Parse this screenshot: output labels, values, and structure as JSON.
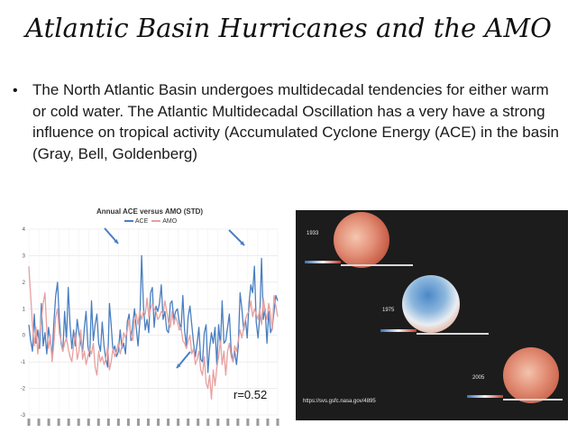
{
  "slide": {
    "title": "Atlantic Basin Hurricanes and the AMO",
    "bullet": "The North Atlantic Basin undergoes multidecadal tendencies for either warm or cold water. The Atlantic Multidecadal Oscillation has a very have a strong influence on tropical activity (Accumulated Cyclone Energy (ACE) in the basin (Gray, Bell, Goldenberg)"
  },
  "colors": {
    "ace": "#4a7fc1",
    "amo": "#e8a0a0",
    "panel_bg": "#1c1c1c"
  },
  "chart_data": {
    "type": "line",
    "title": "Annual ACE versus AMO (STD)",
    "legend": [
      "ACE",
      "AMO"
    ],
    "legend_position": "top-center",
    "annotation": "r=0.52",
    "ylim": [
      -3,
      4
    ],
    "yticks": [
      "4",
      "3",
      "2",
      "1",
      "0",
      "-1",
      "-2",
      "-3"
    ],
    "grid": true,
    "x_start": 1871,
    "x_end": 2010,
    "series": [
      {
        "name": "ACE",
        "values": [
          0.4,
          -0.2,
          -0.6,
          0.8,
          -0.3,
          0.2,
          -0.5,
          1.2,
          -0.4,
          0.1,
          -0.7,
          0.3,
          -0.2,
          -0.8,
          0.5,
          1.5,
          2.0,
          0.6,
          -0.3,
          -0.6,
          0.9,
          -0.2,
          1.8,
          0.4,
          -0.5,
          0.2,
          -0.4,
          0.6,
          0.1,
          -0.3,
          -0.6,
          0.3,
          0.9,
          -0.4,
          -0.8,
          1.3,
          -0.2,
          0.4,
          0.8,
          -0.3,
          -0.6,
          0.5,
          -0.4,
          -0.9,
          -1.2,
          1.2,
          0.4,
          -0.6,
          -0.4,
          -0.8,
          -0.6,
          0.2,
          -0.5,
          -0.3,
          -0.7,
          0.5,
          0.8,
          -0.2,
          0.4,
          1.0,
          0.3,
          -0.4,
          0.5,
          3.0,
          1.1,
          0.2,
          0.6,
          0.1,
          1.6,
          1.8,
          0.3,
          1.1,
          0.9,
          1.2,
          1.9,
          0.6,
          0.9,
          0.2,
          0.1,
          1.2,
          1.3,
          0.6,
          0.9,
          1.0,
          0.5,
          0.2,
          1.5,
          0.2,
          -0.4,
          0.7,
          1.1,
          0.4,
          -0.3,
          -0.8,
          -0.3,
          0.3,
          -0.9,
          -1.0,
          0.1,
          0.4,
          -1.4,
          -0.5,
          0.1,
          -0.3,
          0.3,
          -1.1,
          0.4,
          -0.4,
          1.3,
          -0.3,
          -0.2,
          0.3,
          0.8,
          -0.6,
          -1.0,
          -0.6,
          -1.1,
          -0.4,
          1.6,
          1.0,
          0.2,
          0.6,
          -0.1,
          1.2,
          1.9,
          1.6,
          2.6,
          0.5,
          -0.1,
          0.7,
          2.9,
          0.6,
          1.0,
          -0.3,
          0.9,
          0.1,
          0.3,
          0.9,
          1.5,
          1.3
        ],
        "color": "#4a7fc1"
      },
      {
        "name": "AMO",
        "values": [
          2.6,
          1.5,
          0.4,
          -0.4,
          0.3,
          -0.7,
          0.1,
          0.6,
          1.2,
          1.6,
          0.2,
          -0.5,
          0.0,
          -1.0,
          -0.3,
          0.7,
          1.0,
          0.1,
          -0.2,
          -0.6,
          -0.3,
          -0.1,
          -0.5,
          -0.8,
          -1.0,
          -0.4,
          0.1,
          -0.9,
          -0.6,
          0.2,
          -0.9,
          -0.6,
          -1.1,
          -0.8,
          -0.5,
          -0.7,
          -0.3,
          -1.2,
          -1.5,
          -0.6,
          -1.0,
          -0.8,
          -1.1,
          -0.9,
          -0.4,
          -1.3,
          -1.0,
          -0.5,
          -0.8,
          -0.6,
          -0.3,
          -0.7,
          -0.4,
          0.1,
          -0.1,
          0.2,
          0.6,
          0.0,
          -0.2,
          0.5,
          0.8,
          0.4,
          0.9,
          0.6,
          0.9,
          0.8,
          1.4,
          0.7,
          1.0,
          1.2,
          1.0,
          0.9,
          0.6,
          0.7,
          0.9,
          0.8,
          1.3,
          0.9,
          0.5,
          0.3,
          0.9,
          0.4,
          0.7,
          0.5,
          0.2,
          0.3,
          -0.2,
          -0.3,
          -0.5,
          -0.2,
          0.0,
          -0.7,
          -0.5,
          -1.1,
          -0.9,
          -0.6,
          -1.3,
          -1.5,
          -0.8,
          -1.8,
          -2.0,
          -1.5,
          -2.4,
          -1.3,
          -1.9,
          -1.2,
          -0.8,
          -0.2,
          -1.1,
          -0.6,
          -1.5,
          -0.6,
          -0.3,
          -0.8,
          -1.0,
          -0.4,
          -0.6,
          -0.2,
          0.2,
          -0.1,
          0.3,
          0.6,
          0.8,
          0.9,
          1.3,
          0.7,
          1.0,
          0.8,
          0.6,
          1.0,
          0.4,
          1.4,
          0.9,
          0.6,
          1.2,
          0.8,
          0.2,
          1.5,
          1.1,
          0.7
        ],
        "color": "#e8a0a0"
      }
    ]
  },
  "maps": {
    "panels": [
      {
        "year": "1933",
        "dominant": "warm"
      },
      {
        "year": "1975",
        "dominant": "cold"
      },
      {
        "year": "2005",
        "dominant": "warm"
      }
    ],
    "source_url": "https://svs.gsfc.nasa.gov/4895"
  }
}
